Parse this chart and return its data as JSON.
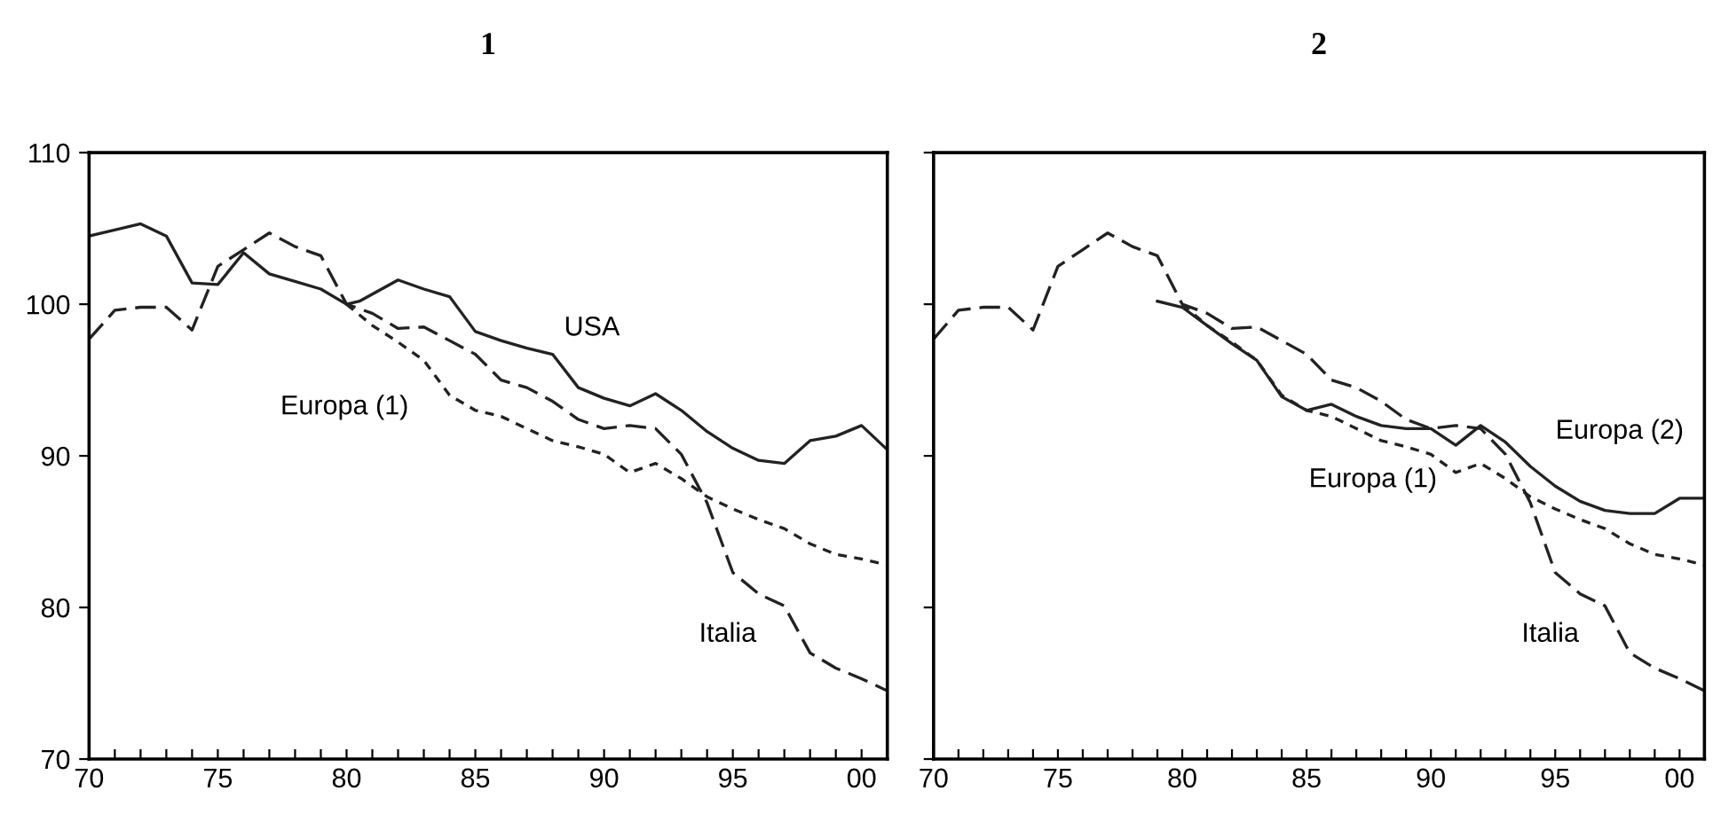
{
  "chart_data": [
    {
      "type": "line",
      "title": "1",
      "xlim": [
        1970,
        2001
      ],
      "ylim": [
        70,
        110
      ],
      "yticks": [
        70,
        80,
        90,
        100,
        110
      ],
      "xticks": [
        {
          "value": 1970,
          "label": "70"
        },
        {
          "value": 1971,
          "label": null
        },
        {
          "value": 1972,
          "label": null
        },
        {
          "value": 1973,
          "label": null
        },
        {
          "value": 1974,
          "label": null
        },
        {
          "value": 1975,
          "label": "75"
        },
        {
          "value": 1976,
          "label": null
        },
        {
          "value": 1977,
          "label": null
        },
        {
          "value": 1978,
          "label": null
        },
        {
          "value": 1979,
          "label": null
        },
        {
          "value": 1980,
          "label": "80"
        },
        {
          "value": 1981,
          "label": null
        },
        {
          "value": 1982,
          "label": null
        },
        {
          "value": 1983,
          "label": null
        },
        {
          "value": 1984,
          "label": null
        },
        {
          "value": 1985,
          "label": "85"
        },
        {
          "value": 1986,
          "label": null
        },
        {
          "value": 1987,
          "label": null
        },
        {
          "value": 1988,
          "label": null
        },
        {
          "value": 1989,
          "label": null
        },
        {
          "value": 1990,
          "label": "90"
        },
        {
          "value": 1991,
          "label": null
        },
        {
          "value": 1992,
          "label": null
        },
        {
          "value": 1993,
          "label": null
        },
        {
          "value": 1994,
          "label": null
        },
        {
          "value": 1995,
          "label": "95"
        },
        {
          "value": 1996,
          "label": null
        },
        {
          "value": 1997,
          "label": null
        },
        {
          "value": 1998,
          "label": null
        },
        {
          "value": 1999,
          "label": null
        },
        {
          "value": 2000,
          "label": "00"
        },
        {
          "value": 2001,
          "label": null
        }
      ],
      "grid": false,
      "series": [
        {
          "name": "USA",
          "color": "#222222",
          "line_style": "solid",
          "x": [
            1970,
            1972,
            1973,
            1974,
            1975,
            1976,
            1977,
            1978,
            1979,
            1980,
            1980.5,
            1982,
            1983,
            1984,
            1985,
            1986,
            1987,
            1988,
            1989,
            1990,
            1991,
            1992,
            1993,
            1994,
            1995,
            1996,
            1997,
            1998,
            1999,
            2000,
            2001
          ],
          "values": [
            104.5,
            105.3,
            104.5,
            101.4,
            101.3,
            103.4,
            102,
            101.5,
            101,
            100,
            100.2,
            101.6,
            101,
            100.5,
            98.2,
            97.6,
            97.1,
            96.7,
            94.5,
            93.8,
            93.3,
            94.1,
            93,
            91.6,
            90.5,
            89.7,
            89.5,
            91,
            91.3,
            92,
            90.4
          ]
        },
        {
          "name": "Italia",
          "color": "#222222",
          "line_style": "dashed",
          "x": [
            1970,
            1971,
            1972,
            1973,
            1974,
            1975,
            1976,
            1977,
            1978,
            1979,
            1980,
            1981,
            1982,
            1983,
            1984,
            1985,
            1986,
            1987,
            1988,
            1989,
            1990,
            1991,
            1992,
            1993,
            1994,
            1995,
            1996,
            1997,
            1998,
            1999,
            2000,
            2001
          ],
          "values": [
            97.7,
            99.6,
            99.8,
            99.8,
            98.3,
            102.5,
            103.6,
            104.7,
            103.8,
            103.2,
            100,
            99.4,
            98.4,
            98.5,
            97.6,
            96.7,
            95,
            94.5,
            93.6,
            92.4,
            91.8,
            92,
            91.8,
            90.1,
            86.9,
            82.3,
            80.9,
            80.1,
            77,
            76,
            75.3,
            74.5
          ]
        },
        {
          "name": "Europa (1)",
          "color": "#222222",
          "line_style": "dotted",
          "x": [
            1980,
            1981,
            1982,
            1983,
            1984,
            1985,
            1986,
            1987,
            1988,
            1989,
            1990,
            1991,
            1992,
            1993,
            1994,
            1995,
            1996,
            1997,
            1998,
            1999,
            2000,
            2001
          ],
          "values": [
            100,
            98.6,
            97.5,
            96.3,
            94,
            93,
            92.6,
            91.8,
            91,
            90.6,
            90.1,
            88.9,
            89.5,
            88.5,
            87.3,
            86.5,
            85.8,
            85.2,
            84.2,
            83.5,
            83.2,
            82.8
          ]
        }
      ]
    },
    {
      "type": "line",
      "title": "2",
      "xlim": [
        1970,
        2001
      ],
      "ylim": [
        70,
        110
      ],
      "yticks": [
        70,
        80,
        90,
        100,
        110
      ],
      "tick_labels": "x",
      "xticks": [
        {
          "value": 1970,
          "label": "70"
        },
        {
          "value": 1971,
          "label": null
        },
        {
          "value": 1972,
          "label": null
        },
        {
          "value": 1973,
          "label": null
        },
        {
          "value": 1974,
          "label": null
        },
        {
          "value": 1975,
          "label": "75"
        },
        {
          "value": 1976,
          "label": null
        },
        {
          "value": 1977,
          "label": null
        },
        {
          "value": 1978,
          "label": null
        },
        {
          "value": 1979,
          "label": null
        },
        {
          "value": 1980,
          "label": "80"
        },
        {
          "value": 1981,
          "label": null
        },
        {
          "value": 1982,
          "label": null
        },
        {
          "value": 1983,
          "label": null
        },
        {
          "value": 1984,
          "label": null
        },
        {
          "value": 1985,
          "label": "85"
        },
        {
          "value": 1986,
          "label": null
        },
        {
          "value": 1987,
          "label": null
        },
        {
          "value": 1988,
          "label": null
        },
        {
          "value": 1989,
          "label": null
        },
        {
          "value": 1990,
          "label": "90"
        },
        {
          "value": 1991,
          "label": null
        },
        {
          "value": 1992,
          "label": null
        },
        {
          "value": 1993,
          "label": null
        },
        {
          "value": 1994,
          "label": null
        },
        {
          "value": 1995,
          "label": "95"
        },
        {
          "value": 1996,
          "label": null
        },
        {
          "value": 1997,
          "label": null
        },
        {
          "value": 1998,
          "label": null
        },
        {
          "value": 1999,
          "label": null
        },
        {
          "value": 2000,
          "label": "00"
        },
        {
          "value": 2001,
          "label": null
        }
      ],
      "grid": false,
      "series": [
        {
          "name": "Europa (2)",
          "color": "#222222",
          "line_style": "solid",
          "x": [
            1979,
            1980,
            1981,
            1982,
            1983,
            1984,
            1985,
            1986,
            1987,
            1988,
            1989,
            1990,
            1991,
            1992,
            1993,
            1994,
            1995,
            1996,
            1997,
            1998,
            1999,
            2000,
            2001
          ],
          "values": [
            100.2,
            99.8,
            98.6,
            97.4,
            96.3,
            93.9,
            93,
            93.4,
            92.6,
            92,
            91.8,
            91.8,
            90.7,
            92,
            90.9,
            89.3,
            88,
            87,
            86.4,
            86.2,
            86.2,
            87.2,
            87.2
          ]
        },
        {
          "name": "Italia",
          "color": "#222222",
          "line_style": "dashed",
          "x": [
            1970,
            1971,
            1972,
            1973,
            1974,
            1975,
            1976,
            1977,
            1978,
            1979,
            1980,
            1981,
            1982,
            1983,
            1984,
            1985,
            1986,
            1987,
            1988,
            1989,
            1990,
            1991,
            1992,
            1993,
            1994,
            1995,
            1996,
            1997,
            1998,
            1999,
            2000,
            2001
          ],
          "values": [
            97.7,
            99.6,
            99.8,
            99.8,
            98.3,
            102.5,
            103.6,
            104.7,
            103.8,
            103.2,
            100,
            99.4,
            98.4,
            98.5,
            97.6,
            96.7,
            95,
            94.5,
            93.6,
            92.4,
            91.8,
            92,
            91.8,
            90.1,
            86.9,
            82.3,
            80.9,
            80.1,
            77,
            76,
            75.3,
            74.5
          ]
        },
        {
          "name": "Europa (1)",
          "color": "#222222",
          "line_style": "dotted",
          "x": [
            1980,
            1981,
            1982,
            1983,
            1984,
            1985,
            1986,
            1987,
            1988,
            1989,
            1990,
            1991,
            1992,
            1993,
            1994,
            1995,
            1996,
            1997,
            1998,
            1999,
            2000,
            2001
          ],
          "values": [
            100,
            98.6,
            97.5,
            96.3,
            94,
            93,
            92.6,
            91.8,
            91,
            90.6,
            90.1,
            88.9,
            89.5,
            88.5,
            87.3,
            86.5,
            85.8,
            85.2,
            84.2,
            83.5,
            83.2,
            82.8
          ]
        }
      ]
    }
  ]
}
